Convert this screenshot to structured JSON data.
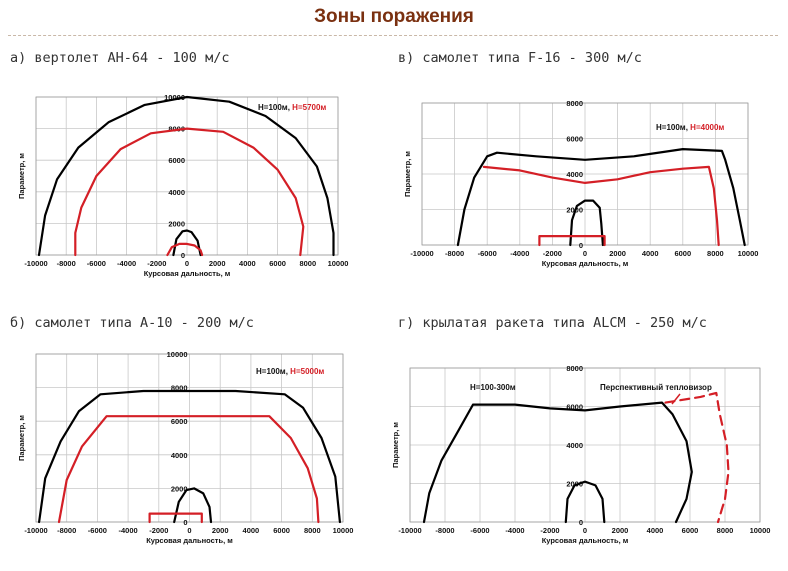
{
  "page": {
    "title": "Зоны поражения"
  },
  "colors": {
    "black": "#000000",
    "red": "#d41f26",
    "title": "#7a3010",
    "grid": "#c8c8c8"
  },
  "chart_data": [
    {
      "type": "line",
      "caption": "а) вертолет АН-64 - 100 м/с",
      "xlabel": "Курсовая дальность, м",
      "ylabel": "Параметр, м",
      "xlim": [
        -10000,
        10000
      ],
      "ylim": [
        0,
        10000
      ],
      "xticks": [
        -10000,
        -8000,
        -6000,
        -4000,
        -2000,
        0,
        2000,
        4000,
        6000,
        8000,
        10000
      ],
      "yticks": [
        0,
        2000,
        4000,
        6000,
        8000,
        10000
      ],
      "legend": {
        "black_label": "H=100м, ",
        "red_label": "H=5700м"
      },
      "series": [
        {
          "color": "black",
          "points": [
            [
              -9800,
              0
            ],
            [
              -9400,
              2500
            ],
            [
              -8600,
              4800
            ],
            [
              -7200,
              6800
            ],
            [
              -5200,
              8400
            ],
            [
              -2800,
              9500
            ],
            [
              0,
              10000
            ],
            [
              2800,
              9700
            ],
            [
              5200,
              8800
            ],
            [
              7200,
              7400
            ],
            [
              8600,
              5600
            ],
            [
              9300,
              3600
            ],
            [
              9700,
              1400
            ],
            [
              9700,
              0
            ]
          ]
        },
        {
          "color": "black",
          "points": [
            [
              -900,
              0
            ],
            [
              -700,
              1000
            ],
            [
              -300,
              1500
            ],
            [
              0,
              1550
            ],
            [
              300,
              1450
            ],
            [
              700,
              900
            ],
            [
              900,
              0
            ]
          ]
        },
        {
          "color": "red",
          "points": [
            [
              -7400,
              0
            ],
            [
              -7400,
              1400
            ],
            [
              -7000,
              3000
            ],
            [
              -6000,
              5000
            ],
            [
              -4400,
              6700
            ],
            [
              -2400,
              7700
            ],
            [
              0,
              8000
            ],
            [
              2400,
              7800
            ],
            [
              4400,
              6800
            ],
            [
              6000,
              5400
            ],
            [
              7200,
              3600
            ],
            [
              7700,
              1800
            ],
            [
              7500,
              0
            ]
          ]
        },
        {
          "color": "red",
          "points": [
            [
              -1300,
              0
            ],
            [
              -1000,
              500
            ],
            [
              -500,
              700
            ],
            [
              0,
              700
            ],
            [
              500,
              600
            ],
            [
              900,
              300
            ],
            [
              1000,
              0
            ]
          ]
        }
      ]
    },
    {
      "type": "line",
      "caption": "в) самолет типа F-16 - 300 м/с",
      "xlabel": "Курсовая дальность, м",
      "ylabel": "Параметр, м",
      "xlim": [
        -10000,
        10000
      ],
      "ylim": [
        0,
        8000
      ],
      "xticks": [
        -10000,
        -8000,
        -6000,
        -4000,
        -2000,
        0,
        2000,
        4000,
        6000,
        8000,
        10000
      ],
      "yticks": [
        0,
        2000,
        4000,
        6000,
        8000
      ],
      "legend": {
        "black_label": "H=100м, ",
        "red_label": "H=4000м"
      },
      "series": [
        {
          "color": "black",
          "points": [
            [
              -7800,
              0
            ],
            [
              -7400,
              2000
            ],
            [
              -6800,
              3800
            ],
            [
              -6000,
              5000
            ],
            [
              -5400,
              5200
            ],
            [
              -3000,
              5000
            ],
            [
              0,
              4800
            ],
            [
              3000,
              5000
            ],
            [
              6000,
              5400
            ],
            [
              8400,
              5300
            ],
            [
              8600,
              4800
            ],
            [
              9100,
              3200
            ],
            [
              9500,
              1400
            ],
            [
              9800,
              0
            ]
          ]
        },
        {
          "color": "black",
          "points": [
            [
              -900,
              0
            ],
            [
              -800,
              1400
            ],
            [
              -500,
              2200
            ],
            [
              0,
              2500
            ],
            [
              500,
              2500
            ],
            [
              900,
              2100
            ],
            [
              1000,
              1200
            ],
            [
              1100,
              0
            ]
          ]
        },
        {
          "color": "red",
          "points": [
            [
              -6200,
              4400
            ],
            [
              -4000,
              4200
            ],
            [
              -2000,
              3800
            ],
            [
              0,
              3500
            ],
            [
              2000,
              3700
            ],
            [
              4000,
              4100
            ],
            [
              6000,
              4300
            ],
            [
              7600,
              4400
            ],
            [
              7900,
              3200
            ],
            [
              8100,
              1400
            ],
            [
              8200,
              0
            ]
          ]
        },
        {
          "color": "red",
          "points": [
            [
              -2800,
              0
            ],
            [
              -2800,
              500
            ],
            [
              1200,
              500
            ],
            [
              1200,
              0
            ]
          ]
        }
      ]
    },
    {
      "type": "line",
      "caption": "б) самолет типа А-10 - 200 м/с",
      "xlabel": "Курсовая дальность, м",
      "ylabel": "Параметр, м",
      "xlim": [
        -10000,
        10000
      ],
      "ylim": [
        0,
        10000
      ],
      "xticks": [
        -10000,
        -8000,
        -6000,
        -4000,
        -2000,
        0,
        2000,
        4000,
        6000,
        8000,
        10000
      ],
      "yticks": [
        0,
        2000,
        4000,
        6000,
        8000,
        10000
      ],
      "legend": {
        "black_label": "H=100м, ",
        "red_label": "H=5000м"
      },
      "series": [
        {
          "color": "black",
          "points": [
            [
              -9800,
              0
            ],
            [
              -9400,
              2600
            ],
            [
              -8400,
              4800
            ],
            [
              -7200,
              6600
            ],
            [
              -5800,
              7600
            ],
            [
              -3000,
              7800
            ],
            [
              0,
              7800
            ],
            [
              3000,
              7800
            ],
            [
              6200,
              7600
            ],
            [
              7400,
              6800
            ],
            [
              8600,
              5000
            ],
            [
              9500,
              2700
            ],
            [
              9800,
              0
            ]
          ]
        },
        {
          "color": "black",
          "points": [
            [
              -1000,
              0
            ],
            [
              -700,
              1200
            ],
            [
              -200,
              1900
            ],
            [
              300,
              2000
            ],
            [
              900,
              1700
            ],
            [
              1300,
              900
            ],
            [
              1400,
              0
            ]
          ]
        },
        {
          "color": "red",
          "points": [
            [
              -8500,
              0
            ],
            [
              -8000,
              2500
            ],
            [
              -7000,
              4500
            ],
            [
              -5400,
              6300
            ],
            [
              0,
              6300
            ],
            [
              5200,
              6300
            ],
            [
              6600,
              5000
            ],
            [
              7700,
              3200
            ],
            [
              8300,
              1400
            ],
            [
              8400,
              0
            ]
          ]
        },
        {
          "color": "red",
          "points": [
            [
              -2600,
              0
            ],
            [
              -2600,
              500
            ],
            [
              800,
              500
            ],
            [
              800,
              0
            ]
          ]
        }
      ]
    },
    {
      "type": "line",
      "caption": "г) крылатая ракета типа ALCM - 250 м/с",
      "xlabel": "Курсовая дальность, м",
      "ylabel": "Параметр, м",
      "xlim": [
        -10000,
        10000
      ],
      "ylim": [
        0,
        8000
      ],
      "xticks": [
        -10000,
        -8000,
        -6000,
        -4000,
        -2000,
        0,
        2000,
        4000,
        6000,
        8000,
        10000
      ],
      "yticks": [
        0,
        2000,
        4000,
        6000,
        8000
      ],
      "legend": {
        "black_label": "H=100-300м",
        "red_label": "Перспективный тепловизор"
      },
      "series": [
        {
          "color": "black",
          "points": [
            [
              -9200,
              0
            ],
            [
              -8900,
              1500
            ],
            [
              -8200,
              3200
            ],
            [
              -7200,
              4800
            ],
            [
              -6400,
              6100
            ],
            [
              -4000,
              6100
            ],
            [
              -2000,
              5900
            ],
            [
              0,
              5800
            ],
            [
              2000,
              6000
            ],
            [
              4400,
              6200
            ],
            [
              5000,
              5600
            ],
            [
              5800,
              4200
            ],
            [
              6100,
              2600
            ],
            [
              5800,
              1200
            ],
            [
              5200,
              0
            ]
          ]
        },
        {
          "color": "black",
          "points": [
            [
              -1100,
              0
            ],
            [
              -1000,
              1200
            ],
            [
              -600,
              1900
            ],
            [
              0,
              2100
            ],
            [
              600,
              1900
            ],
            [
              1000,
              1200
            ],
            [
              1100,
              0
            ]
          ]
        },
        {
          "color": "red",
          "dashed": true,
          "points": [
            [
              4600,
              6200
            ],
            [
              6600,
              6500
            ],
            [
              7500,
              6700
            ],
            [
              7700,
              5600
            ],
            [
              8100,
              4000
            ],
            [
              8200,
              2600
            ],
            [
              8000,
              1200
            ],
            [
              7600,
              0
            ]
          ]
        }
      ]
    }
  ]
}
